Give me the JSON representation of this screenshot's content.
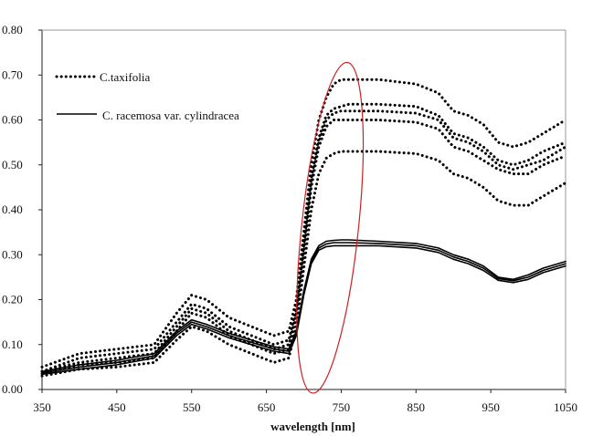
{
  "chart_data": {
    "type": "line",
    "title": "",
    "xlabel": "wavelength [nm]",
    "ylabel": "",
    "xlim": [
      350,
      1050
    ],
    "ylim": [
      0,
      0.8
    ],
    "x_ticks": [
      350,
      450,
      550,
      650,
      750,
      850,
      950,
      1050
    ],
    "x_tick_labels": [
      "350",
      "450",
      "550",
      "650",
      "750",
      "850",
      "950",
      "1050"
    ],
    "y_ticks": [
      0,
      0.1,
      0.2,
      0.3,
      0.4,
      0.5,
      0.6,
      0.7,
      0.8
    ],
    "y_tick_labels": [
      "0.00",
      "0.10",
      "0.20",
      "0.30",
      "0.40",
      "0.50",
      "0.60",
      "0.70",
      "0.80"
    ],
    "grid": false,
    "legend_position": "top-left",
    "legend": [
      {
        "label": "C.taxifolia",
        "style": "dotted"
      },
      {
        "label": "C. racemosa var. cylindracea",
        "style": "solid"
      }
    ],
    "annotation": {
      "type": "ellipse",
      "color": "#cc2222",
      "center_x_nm": 735,
      "center_y": 0.36,
      "half_width_nm": 38,
      "half_height": 0.37
    },
    "x": [
      350,
      400,
      450,
      500,
      530,
      550,
      570,
      600,
      630,
      660,
      680,
      690,
      700,
      710,
      720,
      730,
      740,
      750,
      760,
      800,
      850,
      880,
      900,
      920,
      940,
      960,
      980,
      1000,
      1020,
      1050
    ],
    "series": [
      {
        "group": "C.taxifolia",
        "style": "dotted",
        "values": [
          0.05,
          0.08,
          0.09,
          0.1,
          0.17,
          0.21,
          0.2,
          0.16,
          0.14,
          0.12,
          0.13,
          0.2,
          0.35,
          0.5,
          0.6,
          0.65,
          0.68,
          0.69,
          0.69,
          0.69,
          0.68,
          0.66,
          0.62,
          0.61,
          0.59,
          0.55,
          0.54,
          0.55,
          0.57,
          0.6
        ]
      },
      {
        "group": "C.taxifolia",
        "style": "dotted",
        "values": [
          0.04,
          0.07,
          0.08,
          0.09,
          0.15,
          0.19,
          0.18,
          0.14,
          0.12,
          0.1,
          0.11,
          0.18,
          0.32,
          0.47,
          0.56,
          0.61,
          0.625,
          0.63,
          0.635,
          0.635,
          0.63,
          0.61,
          0.57,
          0.56,
          0.54,
          0.51,
          0.5,
          0.51,
          0.53,
          0.55
        ]
      },
      {
        "group": "C.taxifolia",
        "style": "dotted",
        "values": [
          0.04,
          0.06,
          0.07,
          0.08,
          0.14,
          0.18,
          0.17,
          0.13,
          0.11,
          0.09,
          0.1,
          0.17,
          0.31,
          0.46,
          0.55,
          0.6,
          0.615,
          0.62,
          0.62,
          0.62,
          0.615,
          0.6,
          0.56,
          0.55,
          0.53,
          0.5,
          0.49,
          0.5,
          0.51,
          0.54
        ]
      },
      {
        "group": "C.taxifolia",
        "style": "dotted",
        "values": [
          0.035,
          0.055,
          0.06,
          0.07,
          0.13,
          0.17,
          0.16,
          0.12,
          0.1,
          0.08,
          0.09,
          0.16,
          0.3,
          0.45,
          0.54,
          0.585,
          0.6,
          0.6,
          0.6,
          0.6,
          0.595,
          0.58,
          0.54,
          0.53,
          0.51,
          0.49,
          0.48,
          0.48,
          0.5,
          0.52
        ]
      },
      {
        "group": "C.taxifolia",
        "style": "dotted",
        "values": [
          0.03,
          0.045,
          0.05,
          0.06,
          0.11,
          0.14,
          0.13,
          0.1,
          0.08,
          0.06,
          0.07,
          0.14,
          0.27,
          0.4,
          0.48,
          0.515,
          0.525,
          0.53,
          0.53,
          0.53,
          0.525,
          0.51,
          0.48,
          0.47,
          0.45,
          0.42,
          0.41,
          0.41,
          0.43,
          0.46
        ]
      },
      {
        "group": "C. racemosa var. cylindracea",
        "style": "solid",
        "values": [
          0.04,
          0.055,
          0.065,
          0.08,
          0.13,
          0.155,
          0.145,
          0.125,
          0.11,
          0.095,
          0.09,
          0.13,
          0.22,
          0.29,
          0.32,
          0.33,
          0.332,
          0.333,
          0.333,
          0.33,
          0.325,
          0.315,
          0.3,
          0.29,
          0.275,
          0.25,
          0.245,
          0.255,
          0.27,
          0.285
        ]
      },
      {
        "group": "C. racemosa var. cylindracea",
        "style": "solid",
        "values": [
          0.037,
          0.05,
          0.06,
          0.075,
          0.125,
          0.15,
          0.14,
          0.12,
          0.105,
          0.09,
          0.085,
          0.125,
          0.215,
          0.285,
          0.315,
          0.324,
          0.327,
          0.327,
          0.327,
          0.325,
          0.32,
          0.31,
          0.295,
          0.285,
          0.27,
          0.247,
          0.242,
          0.25,
          0.265,
          0.28
        ]
      },
      {
        "group": "C. racemosa var. cylindracea",
        "style": "solid",
        "values": [
          0.034,
          0.045,
          0.055,
          0.07,
          0.12,
          0.145,
          0.135,
          0.115,
          0.1,
          0.085,
          0.08,
          0.12,
          0.21,
          0.28,
          0.31,
          0.318,
          0.32,
          0.32,
          0.32,
          0.32,
          0.315,
          0.305,
          0.29,
          0.28,
          0.265,
          0.243,
          0.238,
          0.245,
          0.26,
          0.275
        ]
      }
    ]
  }
}
